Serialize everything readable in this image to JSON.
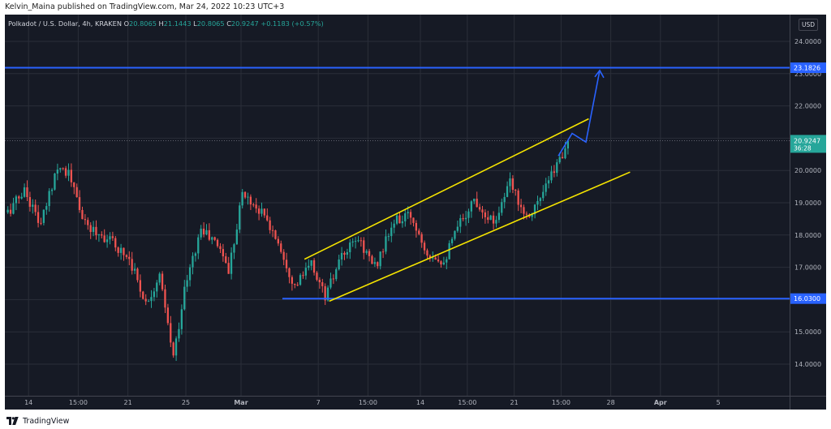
{
  "publish": {
    "text": "Kelvin_Maina published on TradingView.com, Mar 24, 2022 10:23 UTC+3"
  },
  "header": {
    "symbol": "Polkadot / U.S. Dollar, 4h, KRAKEN",
    "o_label": "O",
    "o_value": "20.8065",
    "h_label": "H",
    "h_value": "21.1443",
    "l_label": "L",
    "l_value": "20.8065",
    "c_label": "C",
    "c_value": "20.9247",
    "change": "+0.1183 (+0.57%)",
    "currency": "USD"
  },
  "footer": {
    "brand": "TradingView",
    "logo_icon": "tradingview-logo-icon"
  },
  "colors": {
    "background": "#161a25",
    "grid": "#2a2e39",
    "axis_text": "#b2b5be",
    "up": "#26a69a",
    "down": "#ef5350",
    "horizontal_line": "#2962ff",
    "channel": "#f5e400",
    "projection": "#2962ff"
  },
  "chart_data": {
    "type": "candlestick",
    "title": "",
    "xlabel": "",
    "ylabel": "",
    "ylim": [
      13.0,
      24.5
    ],
    "y_ticks": [
      "24.0000",
      "23.0000",
      "22.0000",
      "21.0000",
      "20.0000",
      "19.0000",
      "18.0000",
      "17.0000",
      "16.0000",
      "15.0000",
      "14.0000"
    ],
    "y_tick_values": [
      24,
      23,
      22,
      21,
      20,
      19,
      18,
      17,
      16,
      15,
      14
    ],
    "x_ticks": [
      "14",
      "15:00",
      "21",
      "25",
      "Mar",
      "7",
      "15:00",
      "14",
      "15:00",
      "21",
      "15:00",
      "28",
      "Apr",
      "5"
    ],
    "x_tick_bars": [
      8,
      26,
      44,
      65,
      85,
      113,
      131,
      150,
      167,
      184,
      201,
      219,
      237,
      258
    ],
    "x_bold": [
      "Mar",
      "Apr"
    ],
    "bar_count": 284,
    "anchors": [
      [
        0,
        18.7
      ],
      [
        6,
        19.4
      ],
      [
        12,
        18.3
      ],
      [
        18,
        20.2
      ],
      [
        22,
        19.9
      ],
      [
        28,
        18.3
      ],
      [
        36,
        17.9
      ],
      [
        44,
        17.3
      ],
      [
        50,
        15.9
      ],
      [
        55,
        16.7
      ],
      [
        60,
        14.2
      ],
      [
        64,
        16.3
      ],
      [
        70,
        18.2
      ],
      [
        77,
        17.6
      ],
      [
        80,
        16.9
      ],
      [
        85,
        19.3
      ],
      [
        92,
        18.7
      ],
      [
        98,
        17.8
      ],
      [
        104,
        16.4
      ],
      [
        110,
        17.1
      ],
      [
        115,
        16.1
      ],
      [
        121,
        17.3
      ],
      [
        127,
        17.9
      ],
      [
        133,
        17.0
      ],
      [
        140,
        18.4
      ],
      [
        146,
        18.6
      ],
      [
        152,
        17.5
      ],
      [
        158,
        17.2
      ],
      [
        164,
        18.4
      ],
      [
        169,
        19.1
      ],
      [
        176,
        18.4
      ],
      [
        182,
        19.6
      ],
      [
        188,
        18.6
      ],
      [
        193,
        19.1
      ],
      [
        199,
        20.2
      ],
      [
        203,
        20.9
      ]
    ],
    "last_close": 20.9247,
    "horizontal_levels": [
      {
        "value": 23.1826,
        "label": "23.1826",
        "from_bar": 0
      },
      {
        "value": 16.03,
        "label": "16.0300",
        "from_bar": 100
      }
    ],
    "price_label": {
      "value": "20.9247",
      "sub": "36:28"
    },
    "channel": {
      "upper": {
        "x1": 108,
        "y1": 17.25,
        "x2": 211,
        "y2": 21.6
      },
      "lower": {
        "x1": 117,
        "y1": 15.95,
        "x2": 226,
        "y2": 19.95
      }
    },
    "projection": [
      [
        200,
        20.45
      ],
      [
        205,
        21.15
      ],
      [
        210,
        20.88
      ],
      [
        215,
        23.1
      ]
    ]
  }
}
